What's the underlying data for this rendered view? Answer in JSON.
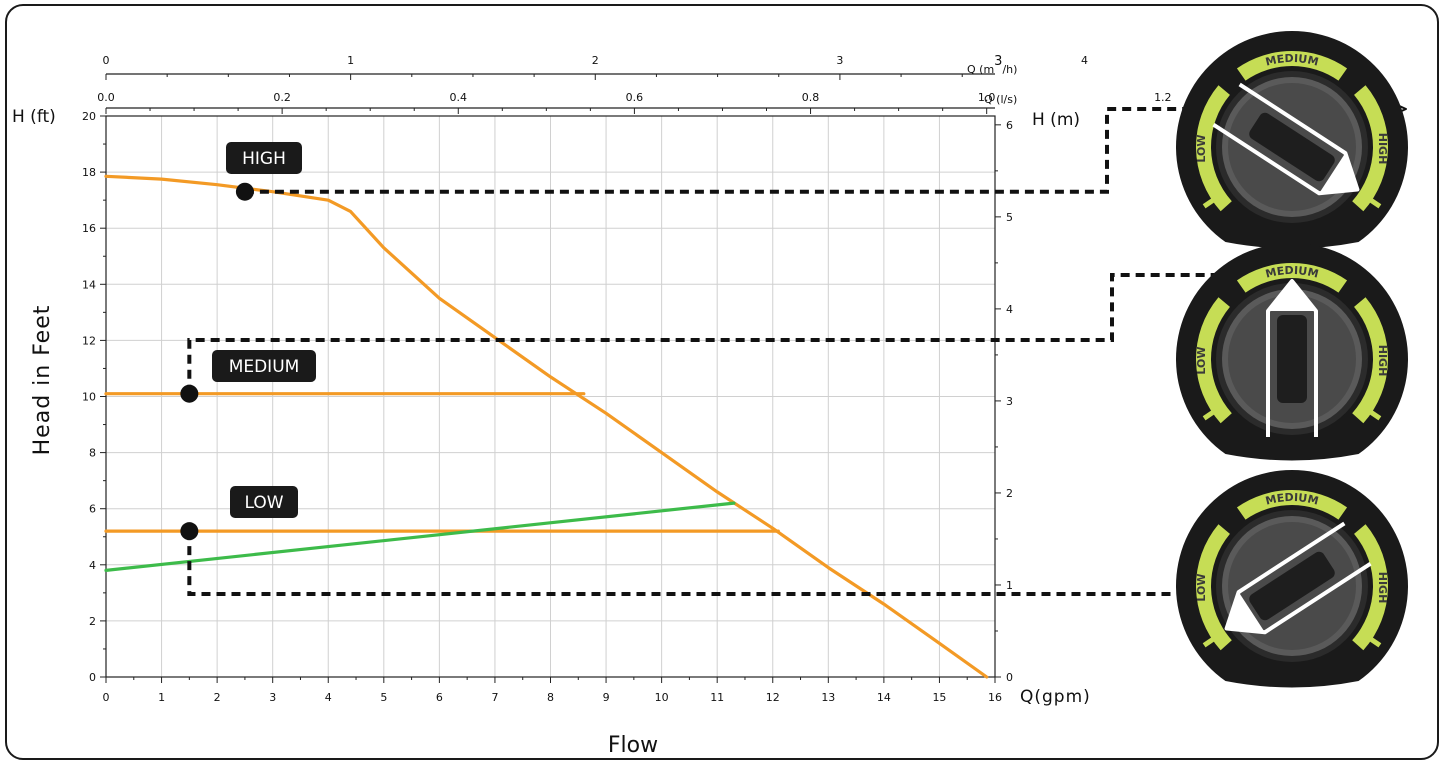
{
  "chart_data": {
    "type": "line",
    "xlabel": "Flow",
    "ylabel": "Head in Feet",
    "x_bottom": {
      "label": "Q(gpm)",
      "ticks": [
        0,
        1,
        2,
        3,
        4,
        5,
        6,
        7,
        8,
        9,
        10,
        11,
        12,
        13,
        14,
        15,
        16
      ],
      "range": [
        0,
        16
      ]
    },
    "x_top_m3h": {
      "label_prefix": "Q (m",
      "label_sup": "3",
      "label_suffix": "/h)",
      "ticks": [
        "0",
        "1",
        "2",
        "3",
        "4"
      ],
      "values": [
        0,
        1,
        2,
        3,
        4
      ]
    },
    "x_top_ls": {
      "label": "Q (l/s)",
      "ticks": [
        "0.0",
        "0.2",
        "0.4",
        "0.6",
        "0.8",
        "1.0",
        "1.2"
      ],
      "values": [
        0,
        0.2,
        0.4,
        0.6,
        0.8,
        1.0,
        1.2
      ]
    },
    "y_left": {
      "label": "H (ft)",
      "ticks": [
        0,
        2,
        4,
        6,
        8,
        10,
        12,
        14,
        16,
        18,
        20
      ],
      "range": [
        0,
        20
      ]
    },
    "y_right": {
      "label": "H (m)",
      "ticks": [
        0,
        1,
        2,
        3,
        4,
        5,
        6
      ]
    },
    "grid": true,
    "series": [
      {
        "name": "HIGH",
        "color": "#f39a25",
        "points": [
          [
            0,
            17.85
          ],
          [
            1,
            17.75
          ],
          [
            2,
            17.55
          ],
          [
            3,
            17.3
          ],
          [
            4,
            17.0
          ],
          [
            4.4,
            16.6
          ],
          [
            5,
            15.3
          ],
          [
            6,
            13.5
          ],
          [
            7,
            12.1
          ],
          [
            8,
            10.7
          ],
          [
            9,
            9.4
          ],
          [
            10,
            8.0
          ],
          [
            11,
            6.6
          ],
          [
            12,
            5.3
          ],
          [
            13,
            3.9
          ],
          [
            14,
            2.6
          ],
          [
            15,
            1.2
          ],
          [
            15.85,
            0
          ]
        ]
      },
      {
        "name": "MEDIUM",
        "color": "#f39a25",
        "points": [
          [
            0,
            10.1
          ],
          [
            8.6,
            10.1
          ]
        ]
      },
      {
        "name": "LOW",
        "color": "#f39a25",
        "points": [
          [
            0,
            5.2
          ],
          [
            12.1,
            5.2
          ]
        ]
      },
      {
        "name": "",
        "color": "#3dbb4a",
        "points": [
          [
            0,
            3.8
          ],
          [
            11.3,
            6.2
          ]
        ]
      }
    ],
    "operating_points": [
      {
        "label": "HIGH",
        "x": 2.5,
        "y": 17.3
      },
      {
        "label": "MEDIUM",
        "x": 1.5,
        "y": 10.1
      },
      {
        "label": "LOW",
        "x": 1.5,
        "y": 5.2
      }
    ]
  },
  "dials": [
    {
      "setting": "HIGH",
      "labels": {
        "low": "LOW",
        "medium": "MEDIUM",
        "high": "HIGH"
      },
      "knob_angle": 123
    },
    {
      "setting": "MEDIUM",
      "labels": {
        "low": "LOW",
        "medium": "MEDIUM",
        "high": "HIGH"
      },
      "knob_angle": 0
    },
    {
      "setting": "LOW",
      "labels": {
        "low": "LOW",
        "medium": "MEDIUM",
        "high": "HIGH"
      },
      "knob_angle": -123
    }
  ],
  "colors": {
    "orange": "#f39a25",
    "green": "#3dbb4a",
    "lime": "#c6dd55",
    "dark": "#1a1a1a"
  }
}
